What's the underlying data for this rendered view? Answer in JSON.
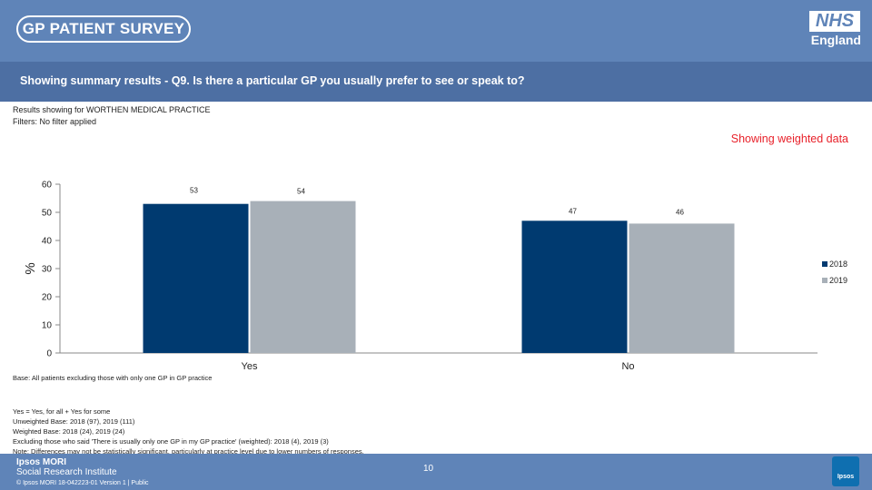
{
  "header": {
    "survey_logo": "GP PATIENT SURVEY",
    "nhs_mark": "NHS",
    "nhs_region": "England"
  },
  "question": "Showing summary results - Q9.  Is there a particular GP you usually prefer to see or speak to?",
  "meta": {
    "results_for": "Results showing for WORTHEN MEDICAL PRACTICE",
    "filters": "Filters: No filter applied"
  },
  "weighted_label": "Showing weighted data",
  "colors": {
    "series_2018": "#003a70",
    "series_2019": "#a8b0b8",
    "header": "#5f84b8",
    "accent_red": "#e8212a"
  },
  "chart_data": {
    "type": "bar",
    "title": "",
    "xlabel": "",
    "ylabel": "%",
    "ylim": [
      0,
      60
    ],
    "yticks": [
      0,
      10,
      20,
      30,
      40,
      50,
      60
    ],
    "categories": [
      "Yes",
      "No"
    ],
    "series": [
      {
        "name": "2018",
        "values": [
          53,
          47
        ]
      },
      {
        "name": "2019",
        "values": [
          54,
          46
        ]
      }
    ],
    "legend": "right",
    "grid": false
  },
  "base_note": "Base: All patients excluding those with only one GP in GP practice",
  "footnotes": [
    "Yes = Yes, for all + Yes for some",
    "Unweighted Base: 2018 (97), 2019 (111)",
    "Weighted Base: 2018 (24), 2019 (24)",
    "Excluding those who said 'There is usually only one GP in my GP practice' (weighted): 2018 (4), 2019 (3)",
    "Note: Differences may not be statistically significant, particularly at practice level due to lower numbers of responses."
  ],
  "footer": {
    "org_name": "Ipsos MORI",
    "org_sub": "Social Research Institute",
    "copyright": "© Ipsos MORI       18-042223-01 Version 1 | Public",
    "page_number": "10",
    "ipsos_logo": "Ipsos"
  }
}
